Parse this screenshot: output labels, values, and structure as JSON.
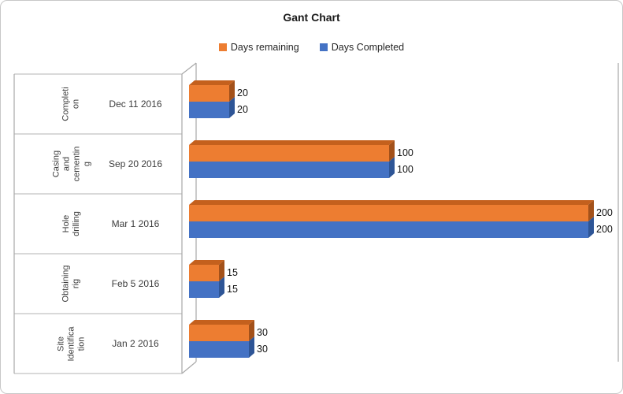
{
  "title": "Gant Chart",
  "legend": [
    {
      "label": "Days remaining",
      "color": "#ED7D31"
    },
    {
      "label": "Days Completed",
      "color": "#4472C4"
    }
  ],
  "chart_data": {
    "type": "bar",
    "orientation": "horizontal",
    "style": "3d",
    "title": "Gant Chart",
    "legend_position": "top",
    "value_axis_visible": false,
    "xlim": [
      0,
      215
    ],
    "categories": [
      "Completion",
      "Casing and cementing",
      "Hole drilling",
      "Obtaining rig",
      "Site identification"
    ],
    "category_dates": [
      "Dec 11 2016",
      "Sep 20 2016",
      "Mar 1 2016",
      "Feb 5 2016",
      "Jan 2 2016"
    ],
    "series": [
      {
        "name": "Days remaining",
        "color": "#ED7D31",
        "color_top": "#C4601D",
        "color_side": "#A3511A",
        "values": [
          20,
          100,
          200,
          15,
          30
        ]
      },
      {
        "name": "Days Completed",
        "color": "#4472C4",
        "color_top": "#3A62A9",
        "color_side": "#2E5596",
        "values": [
          20,
          100,
          200,
          15,
          30
        ]
      }
    ],
    "rows": [
      {
        "task": "Completion",
        "task_lines": "Completi\non",
        "date": "Dec 11 2016",
        "days_remaining": 20,
        "days_completed": 20
      },
      {
        "task": "Casing and cementing",
        "task_lines": "Casing\nand\ncementin\ng",
        "date": "Sep 20 2016",
        "days_remaining": 100,
        "days_completed": 100
      },
      {
        "task": "Hole drilling",
        "task_lines": "Hole\ndrilling",
        "date": "Mar 1 2016",
        "days_remaining": 200,
        "days_completed": 200
      },
      {
        "task": "Obtaining rig",
        "task_lines": "Obtaining\nrig",
        "date": "Feb 5 2016",
        "days_remaining": 15,
        "days_completed": 15
      },
      {
        "task": "Site identification",
        "task_lines": "Site\nIdentifica\ntion",
        "date": "Jan 2 2016",
        "days_remaining": 30,
        "days_completed": 30
      }
    ]
  }
}
